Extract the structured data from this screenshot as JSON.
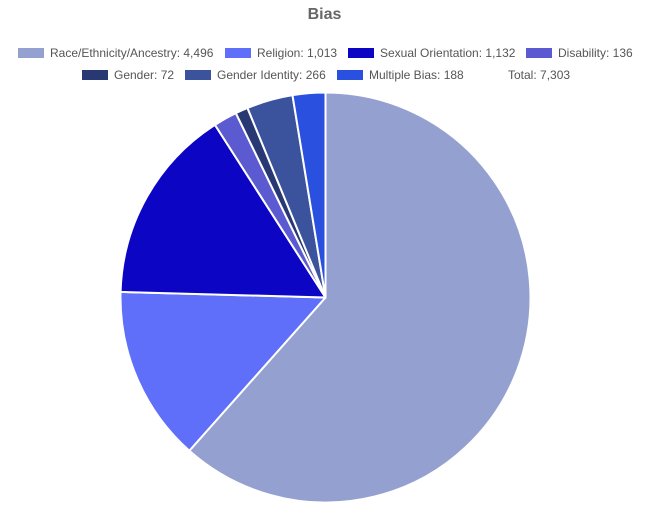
{
  "chart_data": {
    "type": "pie",
    "title": "Bias",
    "total_label": "Total: 7,303",
    "total": 7303,
    "legend_position": "top",
    "slices": [
      {
        "name": "Race/Ethnicity/Ancestry",
        "value": 4496,
        "label": "Race/Ethnicity/Ancestry: 4,496",
        "color": "#94a0cf"
      },
      {
        "name": "Religion",
        "value": 1013,
        "label": "Religion: 1,013",
        "color": "#5f6ff9"
      },
      {
        "name": "Sexual Orientation",
        "value": 1132,
        "label": "Sexual Orientation: 1,132",
        "color": "#0c06c4"
      },
      {
        "name": "Disability",
        "value": 136,
        "label": "Disability: 136",
        "color": "#5b5ad0"
      },
      {
        "name": "Gender",
        "value": 72,
        "label": "Gender: 72",
        "color": "#283872"
      },
      {
        "name": "Gender Identity",
        "value": 266,
        "label": "Gender Identity: 266",
        "color": "#3b539d"
      },
      {
        "name": "Multiple Bias",
        "value": 188,
        "label": "Multiple Bias: 188",
        "color": "#2a50e0"
      }
    ]
  }
}
